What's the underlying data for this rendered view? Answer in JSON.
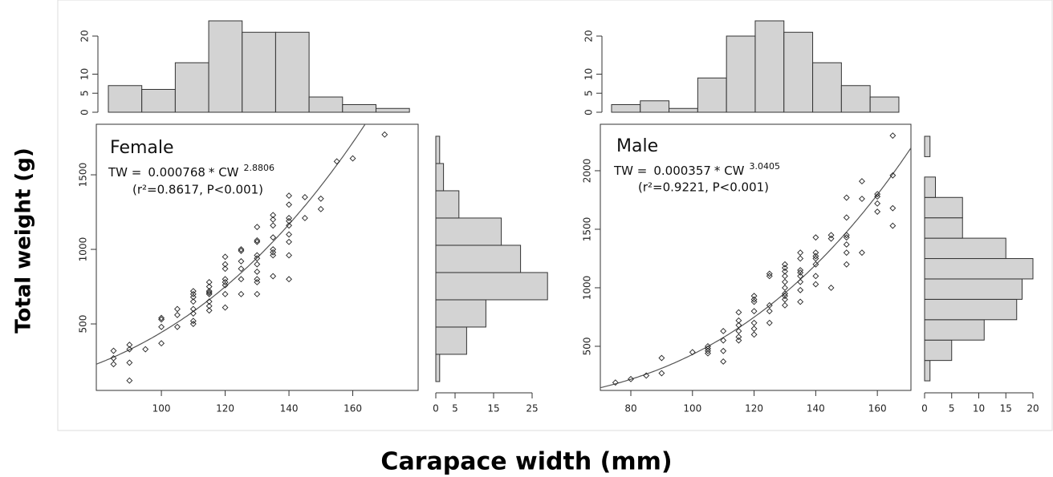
{
  "figure": {
    "ylabel": "Total weight (g)",
    "xlabel": "Carapace width (mm)"
  },
  "chart_data": [
    {
      "type": "scatter",
      "title": "Female",
      "fit": {
        "label_left": "TW =",
        "a": 0.000768,
        "label_mid": "* CW",
        "b": 2.8806,
        "stats": "(r²=0.8617, P<0.001)"
      },
      "x": [
        85,
        85,
        85,
        90,
        90,
        90,
        90,
        95,
        100,
        100,
        100,
        100,
        105,
        105,
        105,
        110,
        110,
        110,
        110,
        110,
        110,
        110,
        110,
        115,
        115,
        115,
        115,
        115,
        115,
        115,
        115,
        120,
        120,
        120,
        120,
        120,
        120,
        120,
        120,
        125,
        125,
        125,
        125,
        125,
        125,
        130,
        130,
        130,
        130,
        130,
        130,
        130,
        130,
        130,
        130,
        135,
        135,
        135,
        135,
        135,
        135,
        135,
        135,
        140,
        140,
        140,
        140,
        140,
        140,
        140,
        140,
        140,
        145,
        145,
        150,
        150,
        155,
        160,
        170
      ],
      "y": [
        320,
        270,
        230,
        360,
        330,
        240,
        120,
        330,
        540,
        530,
        480,
        370,
        600,
        560,
        480,
        720,
        700,
        680,
        650,
        600,
        570,
        520,
        500,
        780,
        750,
        720,
        710,
        700,
        650,
        620,
        590,
        950,
        900,
        870,
        800,
        780,
        760,
        700,
        610,
        1000,
        990,
        920,
        870,
        800,
        700,
        1150,
        1060,
        1050,
        960,
        940,
        900,
        850,
        800,
        780,
        700,
        1230,
        1200,
        1160,
        1080,
        1000,
        980,
        960,
        820,
        1360,
        1300,
        1210,
        1190,
        1160,
        1100,
        1050,
        960,
        800,
        1350,
        1210,
        1340,
        1270,
        1590,
        1610,
        1770
      ],
      "xlim": [
        79.6,
        180.5
      ],
      "ylim": [
        54,
        1839
      ],
      "xticks": [
        100,
        120,
        140,
        160
      ],
      "yticks": [
        500,
        1000,
        1500
      ],
      "top_histogram": {
        "bins": [
          80,
          90,
          100,
          110,
          120,
          130,
          140,
          150,
          160,
          170
        ],
        "counts": [
          7,
          6,
          13,
          24,
          21,
          21,
          4,
          2,
          1
        ],
        "xlim": [
          76.4,
          172.6
        ],
        "ylim": [
          0,
          25
        ],
        "yticks": [
          0,
          5,
          10,
          20
        ]
      },
      "side_histogram": {
        "bins": [
          0,
          200,
          400,
          600,
          800,
          1000,
          1200,
          1400,
          1600,
          1800
        ],
        "counts": [
          1,
          8,
          13,
          29,
          22,
          17,
          6,
          2,
          1
        ],
        "xlim": [
          0,
          30
        ],
        "ylim": [
          -65,
          1888
        ],
        "xticks": [
          0,
          5,
          15,
          25
        ]
      }
    },
    {
      "type": "scatter",
      "title": "Male",
      "fit": {
        "label_left": "TW =",
        "a": 0.000357,
        "label_mid": "* CW",
        "b": 3.0405,
        "stats": "(r²=0.9221, P<0.001)"
      },
      "x": [
        75,
        80,
        85,
        90,
        90,
        100,
        105,
        105,
        105,
        105,
        110,
        110,
        110,
        110,
        115,
        115,
        115,
        115,
        115,
        115,
        120,
        120,
        120,
        120,
        120,
        120,
        120,
        125,
        125,
        125,
        125,
        125,
        130,
        130,
        130,
        130,
        130,
        130,
        130,
        130,
        130,
        130,
        135,
        135,
        135,
        135,
        135,
        135,
        135,
        135,
        140,
        140,
        140,
        140,
        140,
        140,
        140,
        145,
        145,
        145,
        150,
        150,
        150,
        150,
        150,
        150,
        150,
        155,
        155,
        155,
        160,
        160,
        160,
        160,
        165,
        165,
        165,
        165
      ],
      "y": [
        190,
        220,
        250,
        400,
        270,
        450,
        500,
        480,
        460,
        440,
        630,
        550,
        460,
        370,
        790,
        720,
        680,
        630,
        580,
        550,
        930,
        900,
        880,
        800,
        700,
        650,
        600,
        1120,
        1100,
        850,
        800,
        700,
        1200,
        1170,
        1140,
        1100,
        1050,
        1000,
        950,
        930,
        900,
        850,
        1300,
        1250,
        1150,
        1130,
        1100,
        1050,
        980,
        880,
        1430,
        1300,
        1270,
        1250,
        1200,
        1100,
        1030,
        1450,
        1420,
        1000,
        1770,
        1600,
        1450,
        1430,
        1370,
        1300,
        1200,
        1910,
        1760,
        1300,
        1800,
        1780,
        1720,
        1650,
        2300,
        1960,
        1680,
        1530
      ],
      "xlim": [
        70.1,
        170.9
      ],
      "ylim": [
        123,
        2397
      ],
      "xticks": [
        80,
        100,
        120,
        140,
        160
      ],
      "yticks": [
        500,
        1000,
        1500,
        2000
      ],
      "top_histogram": {
        "bins": [
          70,
          80,
          90,
          100,
          110,
          120,
          130,
          140,
          150,
          160,
          170
        ],
        "counts": [
          2,
          3,
          1,
          9,
          20,
          24,
          21,
          13,
          7,
          4
        ],
        "xlim": [
          66.1,
          174.2
        ],
        "ylim": [
          0,
          25
        ],
        "yticks": [
          0,
          5,
          10,
          20
        ]
      },
      "side_histogram": {
        "bins": [
          0,
          200,
          400,
          600,
          800,
          1000,
          1200,
          1400,
          1600,
          1800,
          2000,
          2200,
          2400
        ],
        "counts": [
          1,
          5,
          11,
          17,
          18,
          20,
          15,
          7,
          7,
          2,
          0,
          1
        ],
        "xlim": [
          0,
          20.4
        ],
        "ylim": [
          -94,
          2518
        ],
        "xticks": [
          0,
          5,
          10,
          15,
          20
        ]
      }
    }
  ]
}
